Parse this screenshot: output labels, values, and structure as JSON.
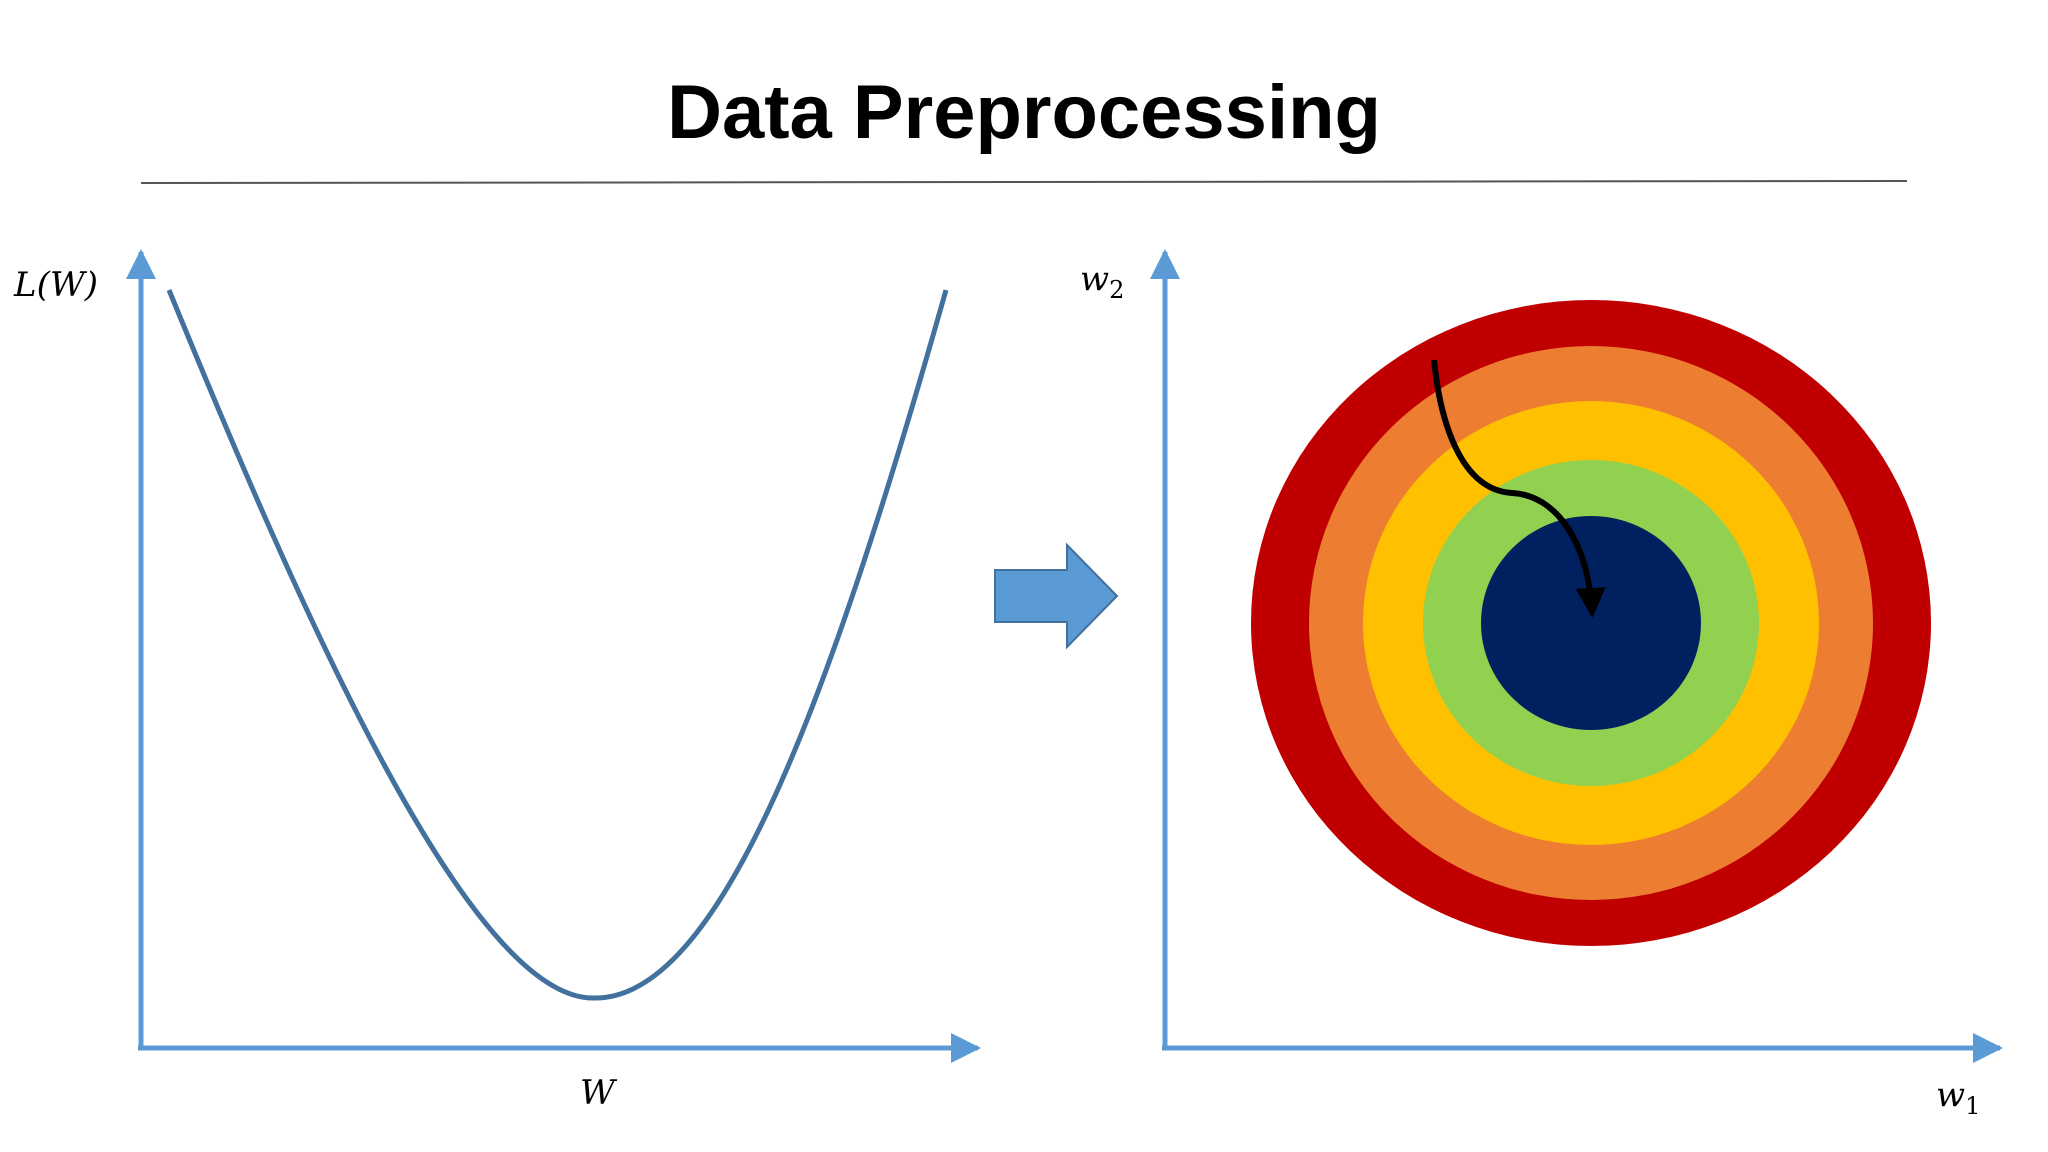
{
  "slide": {
    "title": "Data Preprocessing"
  },
  "left_plot": {
    "y_label": "L(W)",
    "x_label": "W",
    "curve_color": "#41719C",
    "axis_color": "#5B9BD5"
  },
  "transition_arrow": {
    "color": "#5B9BD5",
    "icon": "right-block-arrow-icon"
  },
  "right_plot": {
    "y_label_base": "w",
    "y_label_sub": "2",
    "x_label_base": "w",
    "x_label_sub": "1",
    "axis_color": "#5B9BD5",
    "contour_colors": [
      "#C00000",
      "#ED7D31",
      "#FFC000",
      "#92D050",
      "#002060"
    ],
    "path_color": "#000000"
  }
}
